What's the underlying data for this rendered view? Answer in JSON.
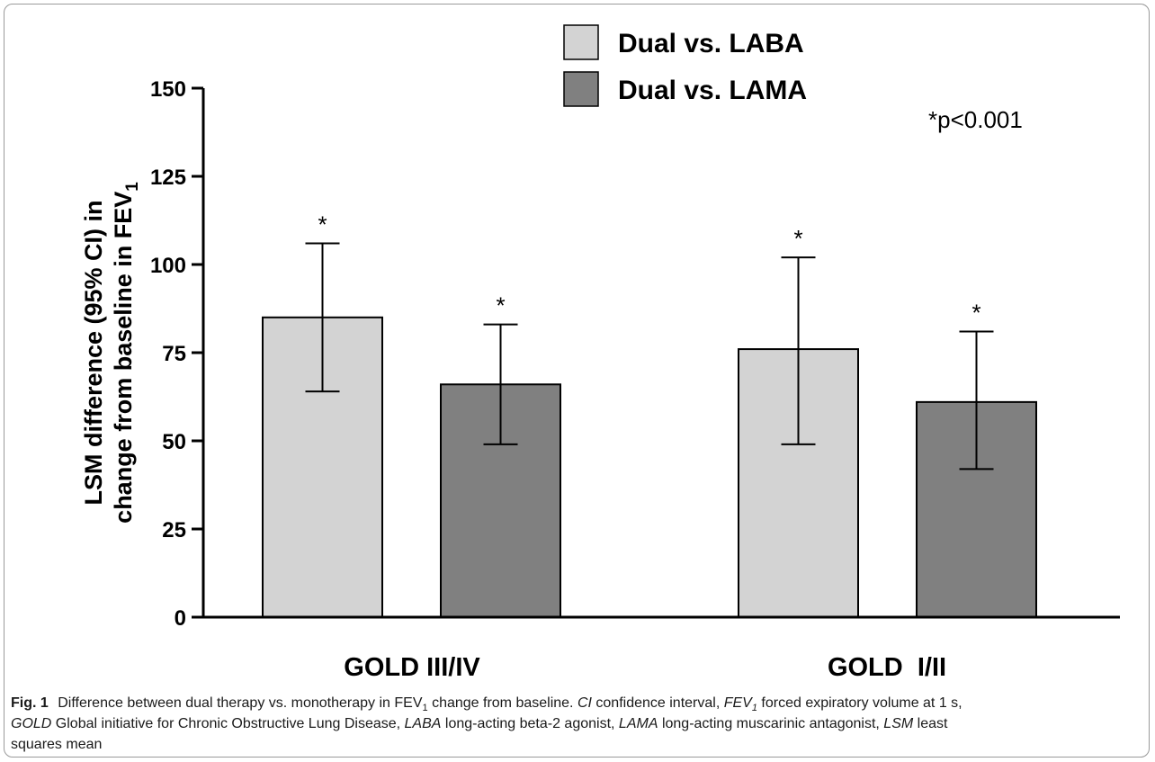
{
  "chart_data": {
    "type": "bar",
    "categories": [
      "GOLD III/IV",
      "GOLD  I/II"
    ],
    "series": [
      {
        "name": "Dual vs. LABA",
        "color": "#d3d3d3",
        "values": [
          85,
          76
        ],
        "ci_low": [
          64,
          49
        ],
        "ci_high": [
          106,
          102
        ],
        "significance": [
          "*",
          "*"
        ]
      },
      {
        "name": "Dual vs. LAMA",
        "color": "#808080",
        "values": [
          66,
          61
        ],
        "ci_low": [
          49,
          42
        ],
        "ci_high": [
          83,
          81
        ],
        "significance": [
          "*",
          "*"
        ]
      }
    ],
    "ylabel_line1": "LSM difference (95% CI) in",
    "ylabel_line2": "change from baseline in FEV",
    "ylabel_sub": "1",
    "ylim": [
      0,
      150
    ],
    "yticks": [
      0,
      25,
      50,
      75,
      100,
      125,
      150
    ],
    "annotation": "*p<0.001",
    "legend_position": "top-center",
    "grid": false
  },
  "caption": {
    "label": "Fig. 1",
    "seg1": "Difference between dual therapy vs. monotherapy in FEV",
    "sub1": "1",
    "seg2": " change from baseline. ",
    "ab_ci": "CI",
    "def_ci": " confidence interval, ",
    "ab_fev": "FEV",
    "ab_fev_sub": "1",
    "def_fev": " forced expiratory volume at 1 s,",
    "ab_gold": "GOLD",
    "def_gold": " Global initiative for Chronic Obstructive Lung Disease, ",
    "ab_laba": "LABA",
    "def_laba": " long-acting beta-2 agonist, ",
    "ab_lama": "LAMA",
    "def_lama": " long-acting muscarinic antagonist, ",
    "ab_lsm": "LSM",
    "def_lsm": " least",
    "def_lsm2": "squares mean"
  }
}
